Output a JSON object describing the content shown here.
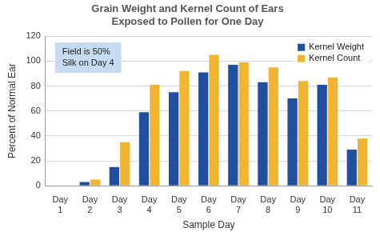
{
  "chart_data": {
    "type": "bar",
    "title": [
      "Grain Weight and Kernel Count of Ears",
      "Exposed to Pollen for One Day"
    ],
    "x_label": "Sample Day",
    "y_label": "Percent of Normal Ear",
    "categories": [
      "Day 1",
      "Day 2",
      "Day 3",
      "Day 4",
      "Day 5",
      "Day 6",
      "Day 7",
      "Day 8",
      "Day 9",
      "Day 10",
      "Day 11"
    ],
    "series": [
      {
        "name": "Kernel Weight",
        "color": "#1f4f9e",
        "values": [
          0,
          3,
          15,
          59,
          75,
          91,
          97,
          83,
          70,
          81,
          29
        ]
      },
      {
        "name": "Kernel Count",
        "color": "#f2b531",
        "values": [
          0,
          5,
          35,
          81,
          92,
          105,
          99,
          95,
          84,
          87,
          38
        ]
      }
    ],
    "ylim": [
      0,
      120
    ],
    "yticks": [
      0,
      20,
      40,
      60,
      80,
      100,
      120
    ],
    "grid": true,
    "legend": "upper right",
    "annotations": [
      {
        "text": [
          "Field is 50%",
          "Silk on Day 4"
        ]
      }
    ]
  }
}
